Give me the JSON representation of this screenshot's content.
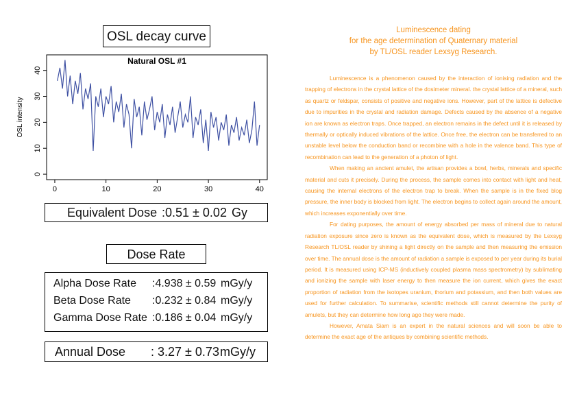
{
  "title": "OSL decay curve",
  "chart_data": {
    "type": "line",
    "title": "Natural OSL #1",
    "y_label": "OSL intensity",
    "x": [
      0.5,
      1,
      1.5,
      2,
      2.5,
      3,
      3.5,
      4,
      4.5,
      5,
      5.5,
      6,
      6.5,
      7,
      7.5,
      8,
      8.5,
      9,
      9.5,
      10,
      10.5,
      11,
      11.5,
      12,
      12.5,
      13,
      13.5,
      14,
      14.5,
      15,
      15.5,
      16,
      16.5,
      17,
      17.5,
      18,
      18.5,
      19,
      19.5,
      20,
      20.5,
      21,
      21.5,
      22,
      22.5,
      23,
      23.5,
      24,
      24.5,
      25,
      25.5,
      26,
      26.5,
      27,
      27.5,
      28,
      28.5,
      29,
      29.5,
      30,
      30.5,
      31,
      31.5,
      32,
      32.5,
      33,
      33.5,
      34,
      34.5,
      35,
      35.5,
      36,
      36.5,
      37,
      37.5,
      38,
      38.5,
      39,
      39.5,
      40
    ],
    "series": [
      {
        "color": "#3f51a3",
        "values": [
          36,
          41,
          33,
          44,
          30,
          38,
          27,
          36,
          31,
          39,
          25,
          33,
          29,
          35,
          9,
          30,
          26,
          33,
          22,
          30,
          27,
          34,
          20,
          28,
          24,
          31,
          18,
          27,
          23,
          10,
          29,
          22,
          26,
          15,
          28,
          21,
          25,
          30,
          17,
          24,
          20,
          27,
          14,
          23,
          19,
          26,
          16,
          22,
          28,
          18,
          23,
          20,
          30,
          14,
          22,
          19,
          25,
          12,
          21,
          9,
          24,
          18,
          22,
          13,
          20,
          17,
          23,
          11,
          19,
          16,
          22,
          13,
          18,
          15,
          21,
          12,
          17,
          28,
          11,
          19
        ]
      }
    ],
    "xlim": [
      -1.6,
      41.5
    ],
    "ylim": [
      -2.1,
      46
    ],
    "xticks": [
      0,
      10,
      20,
      30,
      40
    ],
    "yticks": [
      0,
      10,
      20,
      30,
      40
    ]
  },
  "equivalent_dose": {
    "label": "Equivalent Dose",
    "value": ":0.51 ± 0.02",
    "unit": "Gy"
  },
  "dose_rate_title": "Dose Rate",
  "dose_rates": [
    {
      "label": "Alpha Dose Rate",
      "value": ":4.938 ± 0.59",
      "unit": "mGy/y"
    },
    {
      "label": "Beta Dose Rate",
      "value": ":0.232 ± 0.84",
      "unit": "mGy/y"
    },
    {
      "label": "Gamma Dose Rate",
      "value": ":0.186 ± 0.04",
      "unit": "mGy/y"
    }
  ],
  "annual_dose": {
    "label": "Annual Dose",
    "value": ": 3.27 ± 0.73",
    "unit": "mGy/y"
  },
  "article": {
    "title": [
      "Luminescence dating",
      "for the age determination of Quaternary material",
      "by TL/OSL reader Lexsyg Research."
    ],
    "paragraphs": [
      "Luminescence is a phenomenon caused by the interaction of ionising radiation and the trapping of electrons in the crystal lattice of the dosimeter mineral. the crystal lattice of a mineral, such as quartz or feldspar, consists of positive and negative ions. However, part of the lattice is defective due to impurities in the crystal and radiation damage. Defects caused by the absence of a negative ion are known as electron traps. Once trapped, an electron remains in the defect until it is released by thermally or optically induced vibrations of the lattice. Once free, the electron can be transferred to an unstable level below the conduction band or recombine with a hole in the valence band. This type of recombination can lead to the generation of a photon of light.",
      "When making an ancient amulet, the artisan provides a bowl, herbs, minerals and specific material and cuts it precisely. During the process, the sample comes into contact with light and heat, causing the internal electrons of the electron trap to break. When the sample is in the fixed blog pressure, the inner body is blocked from light. The electron begins to collect again around the amount, which increases exponentially over time.",
      "For dating purposes, the amount of energy absorbed per mass of mineral due to natural radiation exposure since zero is known as the equivalent dose, which is measured by the Lexsyg Research TL/OSL reader by shining a light directly on the sample and then measuring the emission over time. The annual dose is the amount of radiation a sample is exposed to per year during its burial period. It is measured using ICP-MS (inductively coupled plasma mass spectrometry) by sublimating and ionizing the sample with laser energy to then measure the ion current, which gives the exact proportion of radiation from the isotopes uranium, thorium and potassium, and then both values are used for further calculation. To summarise, scientific methods still cannot determine the purity of amulets, but they can determine how long ago they were made.",
      "However, Amata Siam is an expert in the natural sciences and will soon be able to determine the exact age of the antiques by combining scientific methods."
    ]
  }
}
